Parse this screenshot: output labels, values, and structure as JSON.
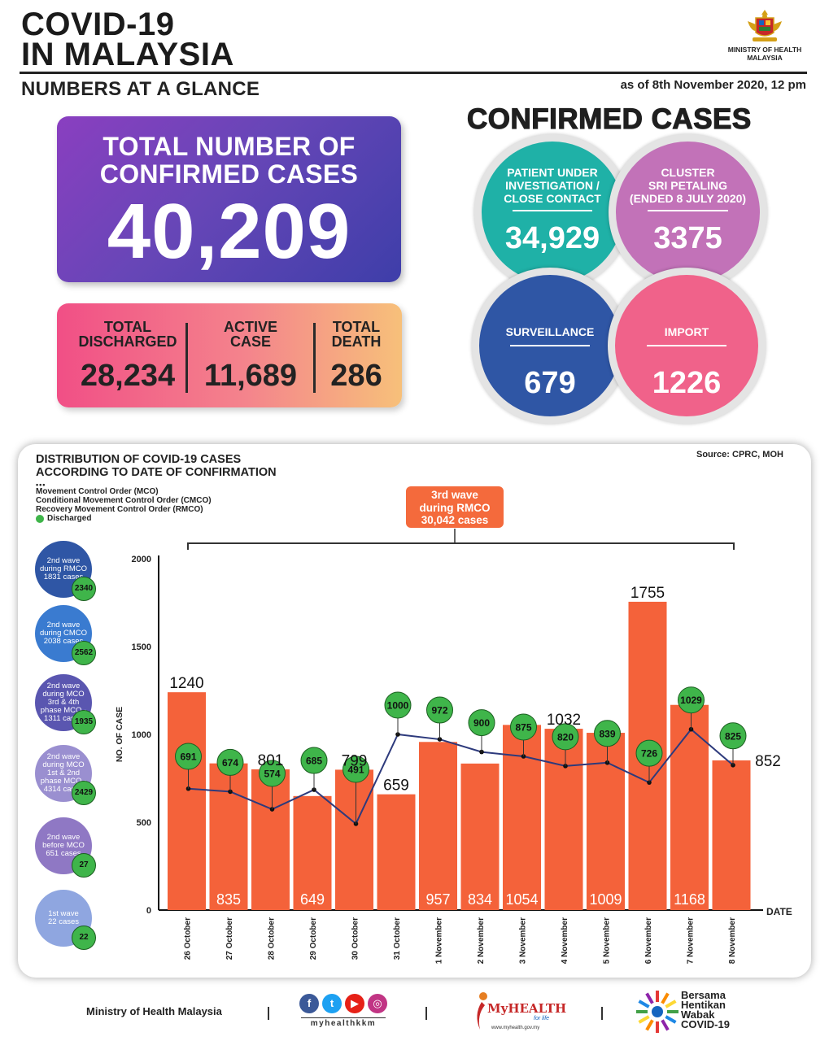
{
  "header": {
    "title_line1": "COVID-19",
    "title_line2": "IN MALAYSIA",
    "subtitle": "NUMBERS AT A GLANCE",
    "as_of": "as of 8th November 2020, 12 pm",
    "ministry_line1": "MINISTRY OF HEALTH",
    "ministry_line2": "MALAYSIA"
  },
  "total": {
    "label_line1": "TOTAL NUMBER OF",
    "label_line2": "CONFIRMED CASES",
    "value": "40,209"
  },
  "stats": {
    "discharged_label1": "TOTAL",
    "discharged_label2": "DISCHARGED",
    "discharged_value": "28,234",
    "active_label1": "ACTIVE",
    "active_label2": "CASE",
    "active_value": "11,689",
    "death_label1": "TOTAL",
    "death_label2": "DEATH",
    "death_value": "286"
  },
  "confirmed": {
    "title": "CONFIRMED CASES",
    "pui_label1": "PATIENT UNDER",
    "pui_label2": "INVESTIGATION /",
    "pui_label3": "CLOSE CONTACT",
    "pui_value": "34,929",
    "cluster_label1": "CLUSTER",
    "cluster_label2": "SRI PETALING",
    "cluster_label3": "(ENDED 8 JULY 2020)",
    "cluster_value": "3375",
    "surveillance_label": "SURVEILLANCE",
    "surveillance_value": "679",
    "import_label": "IMPORT",
    "import_value": "1226",
    "colors": {
      "pui": "#1fb1a7",
      "cluster": "#c272b8",
      "surveillance": "#2f56a5",
      "import": "#f0628a"
    }
  },
  "distribution": {
    "title_line1": "DISTRIBUTION OF COVID-19 CASES",
    "title_line2": "ACCORDING TO DATE OF CONFIRMATION",
    "source": "Source: CPRC, MOH",
    "legend_dots": "•••",
    "legend1": "Movement Control Order (MCO)",
    "legend2": "Conditional Movement Control Order (CMCO)",
    "legend3": "Recovery Movement Control Order (RMCO)",
    "legend4": "Discharged",
    "wave_box_line1": "3rd wave",
    "wave_box_line2": "during RMCO",
    "wave_box_line3": "30,042 cases",
    "waves": [
      {
        "lines": [
          "2nd wave",
          "during RMCO",
          "1831 cases"
        ],
        "discharged": "2340",
        "color": "#2f56a5"
      },
      {
        "lines": [
          "2nd wave",
          "during CMCO",
          "2038 cases"
        ],
        "discharged": "2562",
        "color": "#3a7bd0"
      },
      {
        "lines": [
          "2nd wave",
          "during MCO",
          "3rd & 4th",
          "phase MCO -",
          "1311 cases"
        ],
        "discharged": "1935",
        "color": "#5a56b0"
      },
      {
        "lines": [
          "2nd wave",
          "during MCO",
          "1st & 2nd",
          "phase MCO -",
          "4314 cases"
        ],
        "discharged": "2429",
        "color": "#9a8fd0"
      },
      {
        "lines": [
          "2nd wave",
          "before MCO",
          "651 cases"
        ],
        "discharged": "27",
        "color": "#8f78c4"
      },
      {
        "lines": [
          "1st wave",
          "22 cases"
        ],
        "discharged": "22",
        "color": "#8fa6e0"
      }
    ]
  },
  "chart_data": {
    "type": "bar",
    "title": "DISTRIBUTION OF COVID-19 CASES ACCORDING TO DATE OF CONFIRMATION",
    "xlabel": "DATE",
    "ylabel": "NO. OF CASE",
    "ylim": [
      0,
      2000
    ],
    "yticks": [
      0,
      500,
      1000,
      1500,
      2000
    ],
    "categories": [
      "26 October",
      "27 October",
      "28 October",
      "29 October",
      "30 October",
      "31 October",
      "1 November",
      "2 November",
      "3 November",
      "4 November",
      "5 November",
      "6 November",
      "7 November",
      "8 November"
    ],
    "series": [
      {
        "type": "bar",
        "values": [
          1240,
          835,
          801,
          649,
          799,
          659,
          957,
          834,
          1054,
          1032,
          1009,
          1755,
          1168,
          852
        ],
        "color": "#f4623a"
      },
      {
        "type": "line",
        "name": "Discharged",
        "values": [
          691,
          674,
          574,
          685,
          491,
          1000,
          972,
          900,
          875,
          820,
          839,
          726,
          1029,
          825
        ],
        "color": "#2d3a7c",
        "marker_color": "#3fb54a"
      }
    ],
    "grid": false
  },
  "footer": {
    "ministry": "Ministry of Health Malaysia",
    "handle": "myhealthkkm",
    "myhealth": "MyHEALTH",
    "myhealth_sub": "for life",
    "myhealth_url": "www.myhealth.gov.my",
    "bersama1": "Bersama",
    "bersama2": "Hentikan",
    "bersama3": "Wabak",
    "bersama4": "COVID-19"
  }
}
